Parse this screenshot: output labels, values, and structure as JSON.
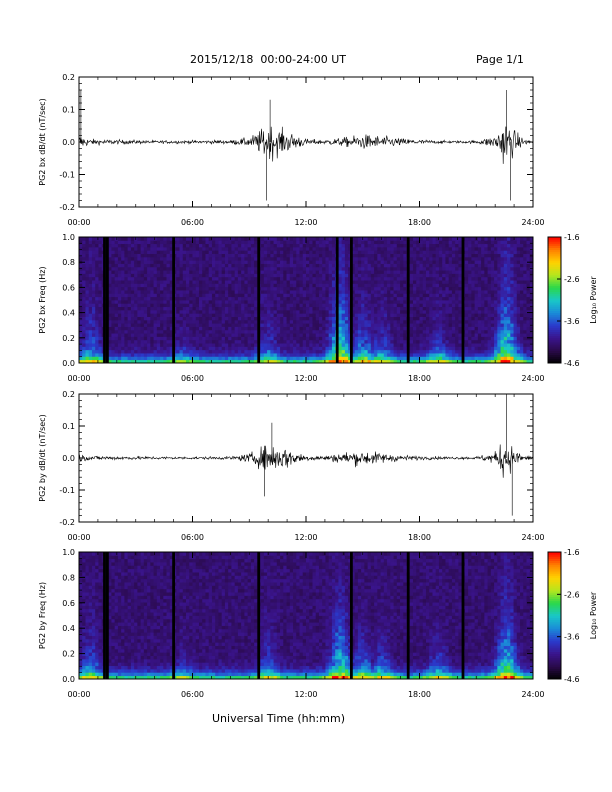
{
  "header": {
    "title": "2015/12/18  00:00-24:00 UT",
    "page": "Page 1/1"
  },
  "footer": {
    "xlabel": "Universal Time (hh:mm)"
  },
  "colors": {
    "trace": "#000000",
    "colormap": [
      "#000000",
      "#2a0a4a",
      "#3a148c",
      "#2a3acc",
      "#1a8cd8",
      "#19c8c8",
      "#2ad84a",
      "#b6e61e",
      "#ffd200",
      "#ff8000",
      "#ff0000"
    ]
  },
  "time_ticks": [
    "00:00",
    "06:00",
    "12:00",
    "18:00",
    "24:00"
  ],
  "colorbar": {
    "label": "Log₁₀ Power",
    "ticks": [
      "-1.6",
      "-2.6",
      "-3.6",
      "-4.6"
    ],
    "range": [
      -4.6,
      -1.6
    ]
  },
  "chart_data": [
    {
      "type": "line",
      "ylabel": "PG2 bx dB/dt (nT/sec)",
      "xlim": [
        0,
        24
      ],
      "ylim": [
        -0.2,
        0.2
      ],
      "yticks": [
        "0.2",
        "0.1",
        "0.0",
        "-0.1",
        "-0.2"
      ],
      "x_unit": "hours UT",
      "envelope": {
        "x": [
          0,
          0.5,
          2,
          4,
          6,
          8,
          9,
          9.5,
          10,
          10.5,
          11,
          11.5,
          12,
          13,
          14,
          15,
          16,
          17,
          18,
          19,
          20,
          21,
          22,
          22.5,
          23,
          23.5,
          24
        ],
        "amplitude": [
          0.06,
          0.02,
          0.015,
          0.01,
          0.01,
          0.012,
          0.03,
          0.07,
          0.12,
          0.09,
          0.07,
          0.05,
          0.02,
          0.015,
          0.03,
          0.05,
          0.04,
          0.025,
          0.015,
          0.01,
          0.008,
          0.01,
          0.04,
          0.16,
          0.08,
          0.02,
          0.01
        ]
      },
      "extremes": [
        {
          "x": 0.1,
          "y": 0.16
        },
        {
          "x": 9.9,
          "y": -0.18
        },
        {
          "x": 10.1,
          "y": 0.13
        },
        {
          "x": 22.6,
          "y": 0.16
        },
        {
          "x": 22.8,
          "y": -0.18
        }
      ]
    },
    {
      "type": "heatmap",
      "ylabel": "PG2 bx Freq (Hz)",
      "xlim": [
        0,
        24
      ],
      "ylim": [
        0.0,
        1.0
      ],
      "yticks": [
        "1.0",
        "0.8",
        "0.6",
        "0.4",
        "0.2",
        "0.0"
      ],
      "value_range": [
        -4.6,
        -1.6
      ],
      "data_gaps_hours": [
        1.35,
        1.5,
        5.0,
        9.5,
        13.65,
        14.4,
        17.4,
        20.3
      ],
      "activity_hours": [
        {
          "x": 0.6,
          "strength": 0.5,
          "reach": 0.5
        },
        {
          "x": 5.5,
          "strength": 0.3,
          "reach": 0.25
        },
        {
          "x": 10.0,
          "strength": 0.4,
          "reach": 0.4
        },
        {
          "x": 13.8,
          "strength": 0.9,
          "reach": 0.75
        },
        {
          "x": 15.0,
          "strength": 0.6,
          "reach": 0.45
        },
        {
          "x": 16.0,
          "strength": 0.5,
          "reach": 0.35
        },
        {
          "x": 19.0,
          "strength": 0.5,
          "reach": 0.3
        },
        {
          "x": 22.6,
          "strength": 0.9,
          "reach": 0.7
        }
      ]
    },
    {
      "type": "line",
      "ylabel": "PG2 by dB/dt (nT/sec)",
      "xlim": [
        0,
        24
      ],
      "ylim": [
        -0.2,
        0.2
      ],
      "yticks": [
        "0.2",
        "0.1",
        "0.0",
        "-0.1",
        "-0.2"
      ],
      "x_unit": "hours UT",
      "envelope": {
        "x": [
          0,
          0.5,
          2,
          4,
          6,
          8,
          9,
          9.5,
          10,
          10.5,
          11,
          11.5,
          12,
          13,
          14,
          15,
          16,
          17,
          18,
          19,
          20,
          21,
          22,
          22.5,
          23,
          23.5,
          24
        ],
        "amplitude": [
          0.03,
          0.015,
          0.012,
          0.01,
          0.008,
          0.01,
          0.03,
          0.06,
          0.1,
          0.08,
          0.07,
          0.04,
          0.02,
          0.015,
          0.04,
          0.05,
          0.035,
          0.02,
          0.012,
          0.01,
          0.008,
          0.01,
          0.04,
          0.14,
          0.06,
          0.02,
          0.01
        ]
      },
      "extremes": [
        {
          "x": 9.8,
          "y": -0.12
        },
        {
          "x": 10.2,
          "y": 0.11
        },
        {
          "x": 22.6,
          "y": 0.2
        },
        {
          "x": 22.9,
          "y": -0.18
        }
      ]
    },
    {
      "type": "heatmap",
      "ylabel": "PG2 by Freq (Hz)",
      "xlim": [
        0,
        24
      ],
      "ylim": [
        0.0,
        1.0
      ],
      "yticks": [
        "1.0",
        "0.8",
        "0.6",
        "0.4",
        "0.2",
        "0.0"
      ],
      "value_range": [
        -4.6,
        -1.6
      ],
      "data_gaps_hours": [
        1.35,
        1.5,
        5.0,
        9.5,
        14.4,
        17.4,
        20.3
      ],
      "activity_hours": [
        {
          "x": 0.6,
          "strength": 0.5,
          "reach": 0.4
        },
        {
          "x": 5.5,
          "strength": 0.3,
          "reach": 0.25
        },
        {
          "x": 10.0,
          "strength": 0.45,
          "reach": 0.4
        },
        {
          "x": 13.8,
          "strength": 0.85,
          "reach": 0.6
        },
        {
          "x": 15.0,
          "strength": 0.6,
          "reach": 0.35
        },
        {
          "x": 16.0,
          "strength": 0.5,
          "reach": 0.35
        },
        {
          "x": 19.0,
          "strength": 0.5,
          "reach": 0.3
        },
        {
          "x": 22.6,
          "strength": 0.9,
          "reach": 0.6
        }
      ]
    }
  ]
}
